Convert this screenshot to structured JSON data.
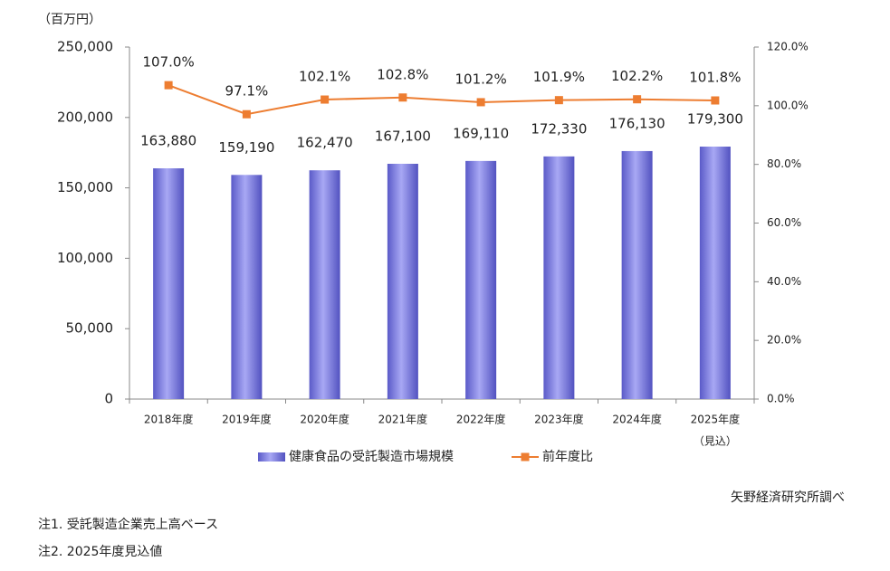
{
  "chart_data": {
    "type": "bar",
    "y_axis_label": "（百万円）",
    "categories": [
      "2018年度",
      "2019年度",
      "2020年度",
      "2021年度",
      "2022年度",
      "2023年度",
      "2024年度",
      "2025年度"
    ],
    "category_note": "（見込）",
    "ylim": [
      0,
      250000
    ],
    "yticks": [
      0,
      {
        "value": 50000,
        "label": "50,000"
      },
      {
        "value": 100000,
        "label": "100,000"
      },
      {
        "value": 150000,
        "label": "150,000"
      },
      {
        "value": 200000,
        "label": "200,000"
      },
      {
        "value": 250000,
        "label": "250,000"
      }
    ],
    "y2lim": [
      0,
      120
    ],
    "y2ticks": [
      {
        "value": 0,
        "label": "0.0%"
      },
      {
        "value": 20,
        "label": "20.0%"
      },
      {
        "value": 40,
        "label": "40.0%"
      },
      {
        "value": 60,
        "label": "60.0%"
      },
      {
        "value": 80,
        "label": "80.0%"
      },
      {
        "value": 100,
        "label": "100.0%"
      },
      {
        "value": 120,
        "label": "120.0%"
      }
    ],
    "series": [
      {
        "name": "健康食品の受託製造市場規模",
        "type": "bar",
        "color": "#7a7ae0",
        "values": [
          163880,
          159190,
          162470,
          167100,
          169110,
          172330,
          176130,
          179300
        ],
        "value_labels": [
          "163,880",
          "159,190",
          "162,470",
          "167,100",
          "169,110",
          "172,330",
          "176,130",
          "179,300"
        ]
      },
      {
        "name": "前年度比",
        "type": "line",
        "axis": "y2",
        "color": "#ed7d31",
        "values": [
          107.0,
          97.1,
          102.1,
          102.8,
          101.2,
          101.9,
          102.2,
          101.8
        ],
        "value_labels": [
          "107.0%",
          "97.1%",
          "102.1%",
          "102.8%",
          "101.2%",
          "101.9%",
          "102.2%",
          "101.8%"
        ]
      }
    ],
    "source": "矢野経済研究所調べ",
    "notes": [
      "注1. 受託製造企業売上高ベース",
      "注2. 2025年度見込値"
    ]
  }
}
